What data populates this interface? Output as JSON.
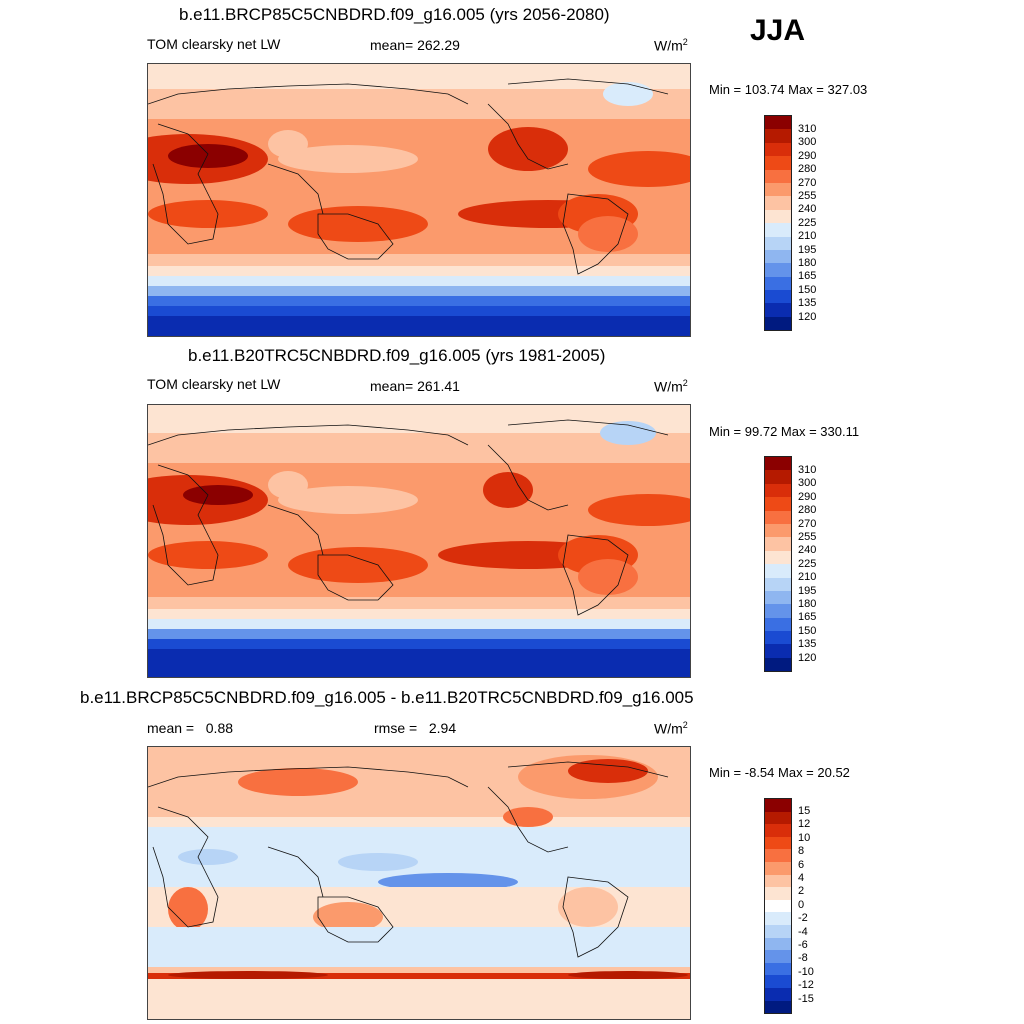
{
  "season": "JJA",
  "panels": [
    {
      "title": "b.e11.BRCP85C5CNBDRD.f09_g16.005 (yrs 2056-2080)",
      "variable": "TOM clearsky net LW",
      "stat": "mean= 262.29",
      "units": "W/m",
      "units_sup": "2",
      "minmax": "Min = 103.74 Max = 327.03",
      "colorbar_ticks": [
        "310",
        "300",
        "290",
        "280",
        "270",
        "255",
        "240",
        "225",
        "210",
        "195",
        "180",
        "165",
        "150",
        "135",
        "120"
      ]
    },
    {
      "title": "b.e11.B20TRC5CNBDRD.f09_g16.005 (yrs 1981-2005)",
      "variable": "TOM clearsky net LW",
      "stat": "mean= 261.41",
      "units": "W/m",
      "units_sup": "2",
      "minmax": "Min =  99.72 Max = 330.11",
      "colorbar_ticks": [
        "310",
        "300",
        "290",
        "280",
        "270",
        "255",
        "240",
        "225",
        "210",
        "195",
        "180",
        "165",
        "150",
        "135",
        "120"
      ]
    },
    {
      "title": "b.e11.BRCP85C5CNBDRD.f09_g16.005 - b.e11.B20TRC5CNBDRD.f09_g16.005",
      "stat_mean_label": "mean =",
      "stat_mean_value": "0.88",
      "stat_rmse_label": "rmse =",
      "stat_rmse_value": "2.94",
      "units": "W/m",
      "units_sup": "2",
      "minmax": "Min =  -8.54 Max =  20.52",
      "colorbar_ticks": [
        "15",
        "12",
        "10",
        "8",
        "6",
        "4",
        "2",
        "0",
        "-2",
        "-4",
        "-6",
        "-8",
        "-10",
        "-12",
        "-15"
      ]
    }
  ],
  "colors": {
    "abs_scale": [
      "#8b0000",
      "#b51a00",
      "#d92e0a",
      "#ee4a16",
      "#f87040",
      "#fb9a6c",
      "#fdc3a3",
      "#fde4d2",
      "#d9ebfb",
      "#b7d4f6",
      "#8fb6f0",
      "#6493ea",
      "#3a6fe3",
      "#1a4bd2",
      "#0a2cb0",
      "#001a80"
    ],
    "diff_scale": [
      "#8b0000",
      "#b51a00",
      "#d92e0a",
      "#ee4a16",
      "#f87040",
      "#fb9a6c",
      "#fdc3a3",
      "#fde4d2",
      "#ffffff",
      "#d9ebfb",
      "#b7d4f6",
      "#8fb6f0",
      "#6493ea",
      "#3a6fe3",
      "#1a4bd2",
      "#0a2cb0",
      "#001a80"
    ]
  }
}
